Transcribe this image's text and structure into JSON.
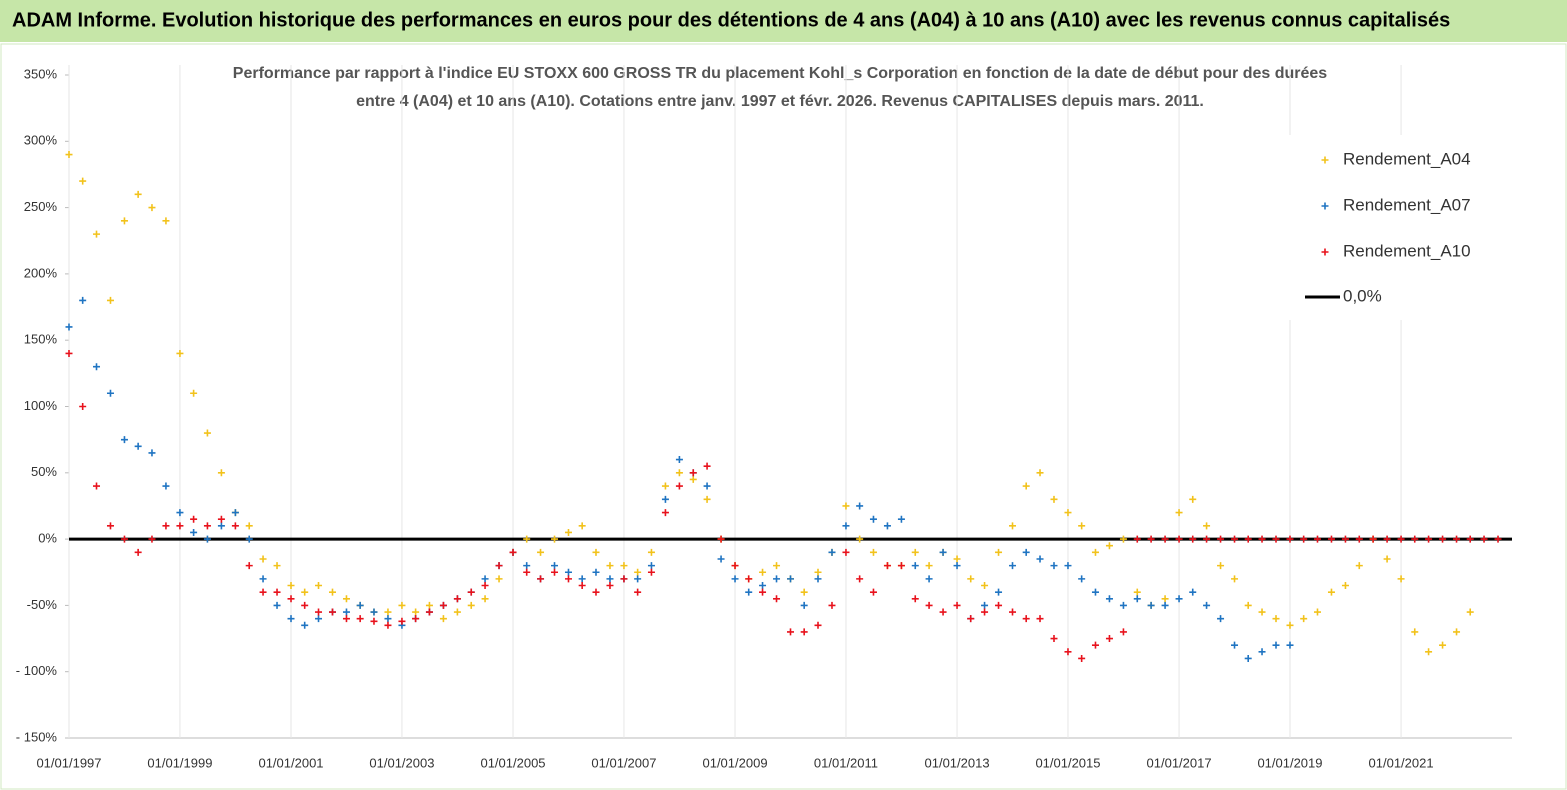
{
  "header": {
    "title": "ADAM Informe. Evolution historique des performances en euros pour des détentions de 4 ans (A04) à 10 ans (A10) avec les revenus connus capitalisés"
  },
  "chart_data": {
    "type": "scatter",
    "title": [
      "Performance par rapport à l'indice EU STOXX 600 GROSS TR  du placement Kohl_s Corporation en fonction de la date de début pour des durées",
      "entre 4 (A04) et 10 ans (A10). Cotations entre janv. 1997 et févr. 2026. Revenus CAPITALISES depuis mars. 2011."
    ],
    "x": [
      "1997-01-01",
      "1997-04-01",
      "1997-07-01",
      "1997-10-01",
      "1998-01-01",
      "1998-04-01",
      "1998-07-01",
      "1998-10-01",
      "1999-01-01",
      "1999-04-01",
      "1999-07-01",
      "1999-10-01",
      "2000-01-01",
      "2000-04-01",
      "2000-07-01",
      "2000-10-01",
      "2001-01-01",
      "2001-04-01",
      "2001-07-01",
      "2001-10-01",
      "2002-01-01",
      "2002-04-01",
      "2002-07-01",
      "2002-10-01",
      "2003-01-01",
      "2003-04-01",
      "2003-07-01",
      "2003-10-01",
      "2004-01-01",
      "2004-04-01",
      "2004-07-01",
      "2004-10-01",
      "2005-01-01",
      "2005-04-01",
      "2005-07-01",
      "2005-10-01",
      "2006-01-01",
      "2006-04-01",
      "2006-07-01",
      "2006-10-01",
      "2007-01-01",
      "2007-04-01",
      "2007-07-01",
      "2007-10-01",
      "2008-01-01",
      "2008-04-01",
      "2008-07-01",
      "2008-10-01",
      "2009-01-01",
      "2009-04-01",
      "2009-07-01",
      "2009-10-01",
      "2010-01-01",
      "2010-04-01",
      "2010-07-01",
      "2010-10-01",
      "2011-01-01",
      "2011-04-01",
      "2011-07-01",
      "2011-10-01",
      "2012-01-01",
      "2012-04-01",
      "2012-07-01",
      "2012-10-01",
      "2013-01-01",
      "2013-04-01",
      "2013-07-01",
      "2013-10-01",
      "2014-01-01",
      "2014-04-01",
      "2014-07-01",
      "2014-10-01",
      "2015-01-01",
      "2015-04-01",
      "2015-07-01",
      "2015-10-01",
      "2016-01-01",
      "2016-04-01",
      "2016-07-01",
      "2016-10-01",
      "2017-01-01",
      "2017-04-01",
      "2017-07-01",
      "2017-10-01",
      "2018-01-01",
      "2018-04-01",
      "2018-07-01",
      "2018-10-01",
      "2019-01-01",
      "2019-04-01",
      "2019-07-01",
      "2019-10-01",
      "2020-01-01",
      "2020-04-01",
      "2020-07-01",
      "2020-10-01",
      "2021-01-01",
      "2021-04-01",
      "2021-07-01",
      "2021-10-01",
      "2022-01-01",
      "2022-04-01",
      "2022-07-01",
      "2022-10-01"
    ],
    "series": [
      {
        "name": "Rendement_A04",
        "color": "#f2c21b",
        "values": [
          290,
          270,
          230,
          180,
          240,
          260,
          250,
          240,
          140,
          110,
          80,
          50,
          20,
          10,
          -15,
          -20,
          -35,
          -40,
          -35,
          -40,
          -45,
          -50,
          -55,
          -55,
          -50,
          -55,
          -50,
          -60,
          -55,
          -50,
          -45,
          -30,
          -10,
          0,
          -10,
          0,
          5,
          10,
          -10,
          -20,
          -20,
          -25,
          -10,
          40,
          50,
          45,
          30,
          0,
          -20,
          -30,
          -25,
          -20,
          -30,
          -40,
          -25,
          -10,
          25,
          0,
          -10,
          -20,
          -20,
          -10,
          -20,
          -10,
          -15,
          -30,
          -35,
          -10,
          10,
          40,
          50,
          30,
          20,
          10,
          -10,
          -5,
          0,
          -40,
          -50,
          -45,
          20,
          30,
          10,
          -20,
          -30,
          -50,
          -55,
          -60,
          -65,
          -60,
          -55,
          -40,
          -35,
          -20,
          0,
          -15,
          -30,
          -70,
          -85,
          -80,
          -70,
          -55,
          null,
          null
        ]
      },
      {
        "name": "Rendement_A07",
        "color": "#1f74c2",
        "values": [
          160,
          180,
          130,
          110,
          75,
          70,
          65,
          40,
          20,
          5,
          0,
          10,
          20,
          0,
          -30,
          -50,
          -60,
          -65,
          -60,
          -55,
          -55,
          -50,
          -55,
          -60,
          -65,
          -60,
          -55,
          -50,
          -45,
          -40,
          -30,
          -20,
          -10,
          -20,
          -30,
          -20,
          -25,
          -30,
          -25,
          -30,
          -30,
          -30,
          -20,
          30,
          60,
          50,
          40,
          -15,
          -30,
          -40,
          -35,
          -30,
          -30,
          -50,
          -30,
          -10,
          10,
          25,
          15,
          10,
          15,
          -20,
          -30,
          -10,
          -20,
          -60,
          -50,
          -40,
          -20,
          -10,
          -15,
          -20,
          -20,
          -30,
          -40,
          -45,
          -50,
          -45,
          -50,
          -50,
          -45,
          -40,
          -50,
          -60,
          -80,
          -90,
          -85,
          -80,
          -80,
          null,
          null,
          null,
          null,
          null,
          null,
          null,
          null,
          null,
          null,
          null,
          null,
          null,
          null,
          null
        ]
      },
      {
        "name": "Rendement_A10",
        "color": "#e8121c",
        "values": [
          140,
          100,
          40,
          10,
          0,
          -10,
          0,
          10,
          10,
          15,
          10,
          15,
          10,
          -20,
          -40,
          -40,
          -45,
          -50,
          -55,
          -55,
          -60,
          -60,
          -62,
          -65,
          -62,
          -60,
          -55,
          -50,
          -45,
          -40,
          -35,
          -20,
          -10,
          -25,
          -30,
          -25,
          -30,
          -35,
          -40,
          -35,
          -30,
          -40,
          -25,
          20,
          40,
          50,
          55,
          0,
          -20,
          -30,
          -40,
          -45,
          -70,
          -70,
          -65,
          -50,
          -10,
          -30,
          -40,
          -20,
          -20,
          -45,
          -50,
          -55,
          -50,
          -60,
          -55,
          -50,
          -55,
          -60,
          -60,
          -75,
          -85,
          -90,
          -80,
          -75,
          -70,
          0,
          0,
          0,
          0,
          0,
          0,
          0,
          0,
          0,
          0,
          0,
          0,
          0,
          0,
          0,
          0,
          0,
          0,
          0,
          0,
          0,
          0,
          0,
          0,
          0,
          0,
          0
        ]
      }
    ],
    "reference_line": {
      "name": "0,0%",
      "value": 0,
      "color": "#000000"
    },
    "xlim": [
      "1997-01-01",
      "2023-01-01"
    ],
    "xticks": [
      {
        "value": "1997-01-01",
        "label": "01/01/1997"
      },
      {
        "value": "1999-01-01",
        "label": "01/01/1999"
      },
      {
        "value": "2001-01-01",
        "label": "01/01/2001"
      },
      {
        "value": "2003-01-01",
        "label": "01/01/2003"
      },
      {
        "value": "2005-01-01",
        "label": "01/01/2005"
      },
      {
        "value": "2007-01-01",
        "label": "01/01/2007"
      },
      {
        "value": "2009-01-01",
        "label": "01/01/2009"
      },
      {
        "value": "2011-01-01",
        "label": "01/01/2011"
      },
      {
        "value": "2013-01-01",
        "label": "01/01/2013"
      },
      {
        "value": "2015-01-01",
        "label": "01/01/2015"
      },
      {
        "value": "2017-01-01",
        "label": "01/01/2017"
      },
      {
        "value": "2019-01-01",
        "label": "01/01/2019"
      },
      {
        "value": "2021-01-01",
        "label": "01/01/2021"
      }
    ],
    "ylim": [
      -150,
      350
    ],
    "yticks": [
      {
        "value": -150,
        "label": "- 150%"
      },
      {
        "value": -100,
        "label": "- 100%"
      },
      {
        "value": -50,
        "label": "-50%"
      },
      {
        "value": 0,
        "label": "0%"
      },
      {
        "value": 50,
        "label": "50%"
      },
      {
        "value": 100,
        "label": "100%"
      },
      {
        "value": 150,
        "label": "150%"
      },
      {
        "value": 200,
        "label": "200%"
      },
      {
        "value": 250,
        "label": "250%"
      },
      {
        "value": 300,
        "label": "300%"
      },
      {
        "value": 350,
        "label": "350%"
      }
    ],
    "grid": "x",
    "legend": "top-right"
  }
}
